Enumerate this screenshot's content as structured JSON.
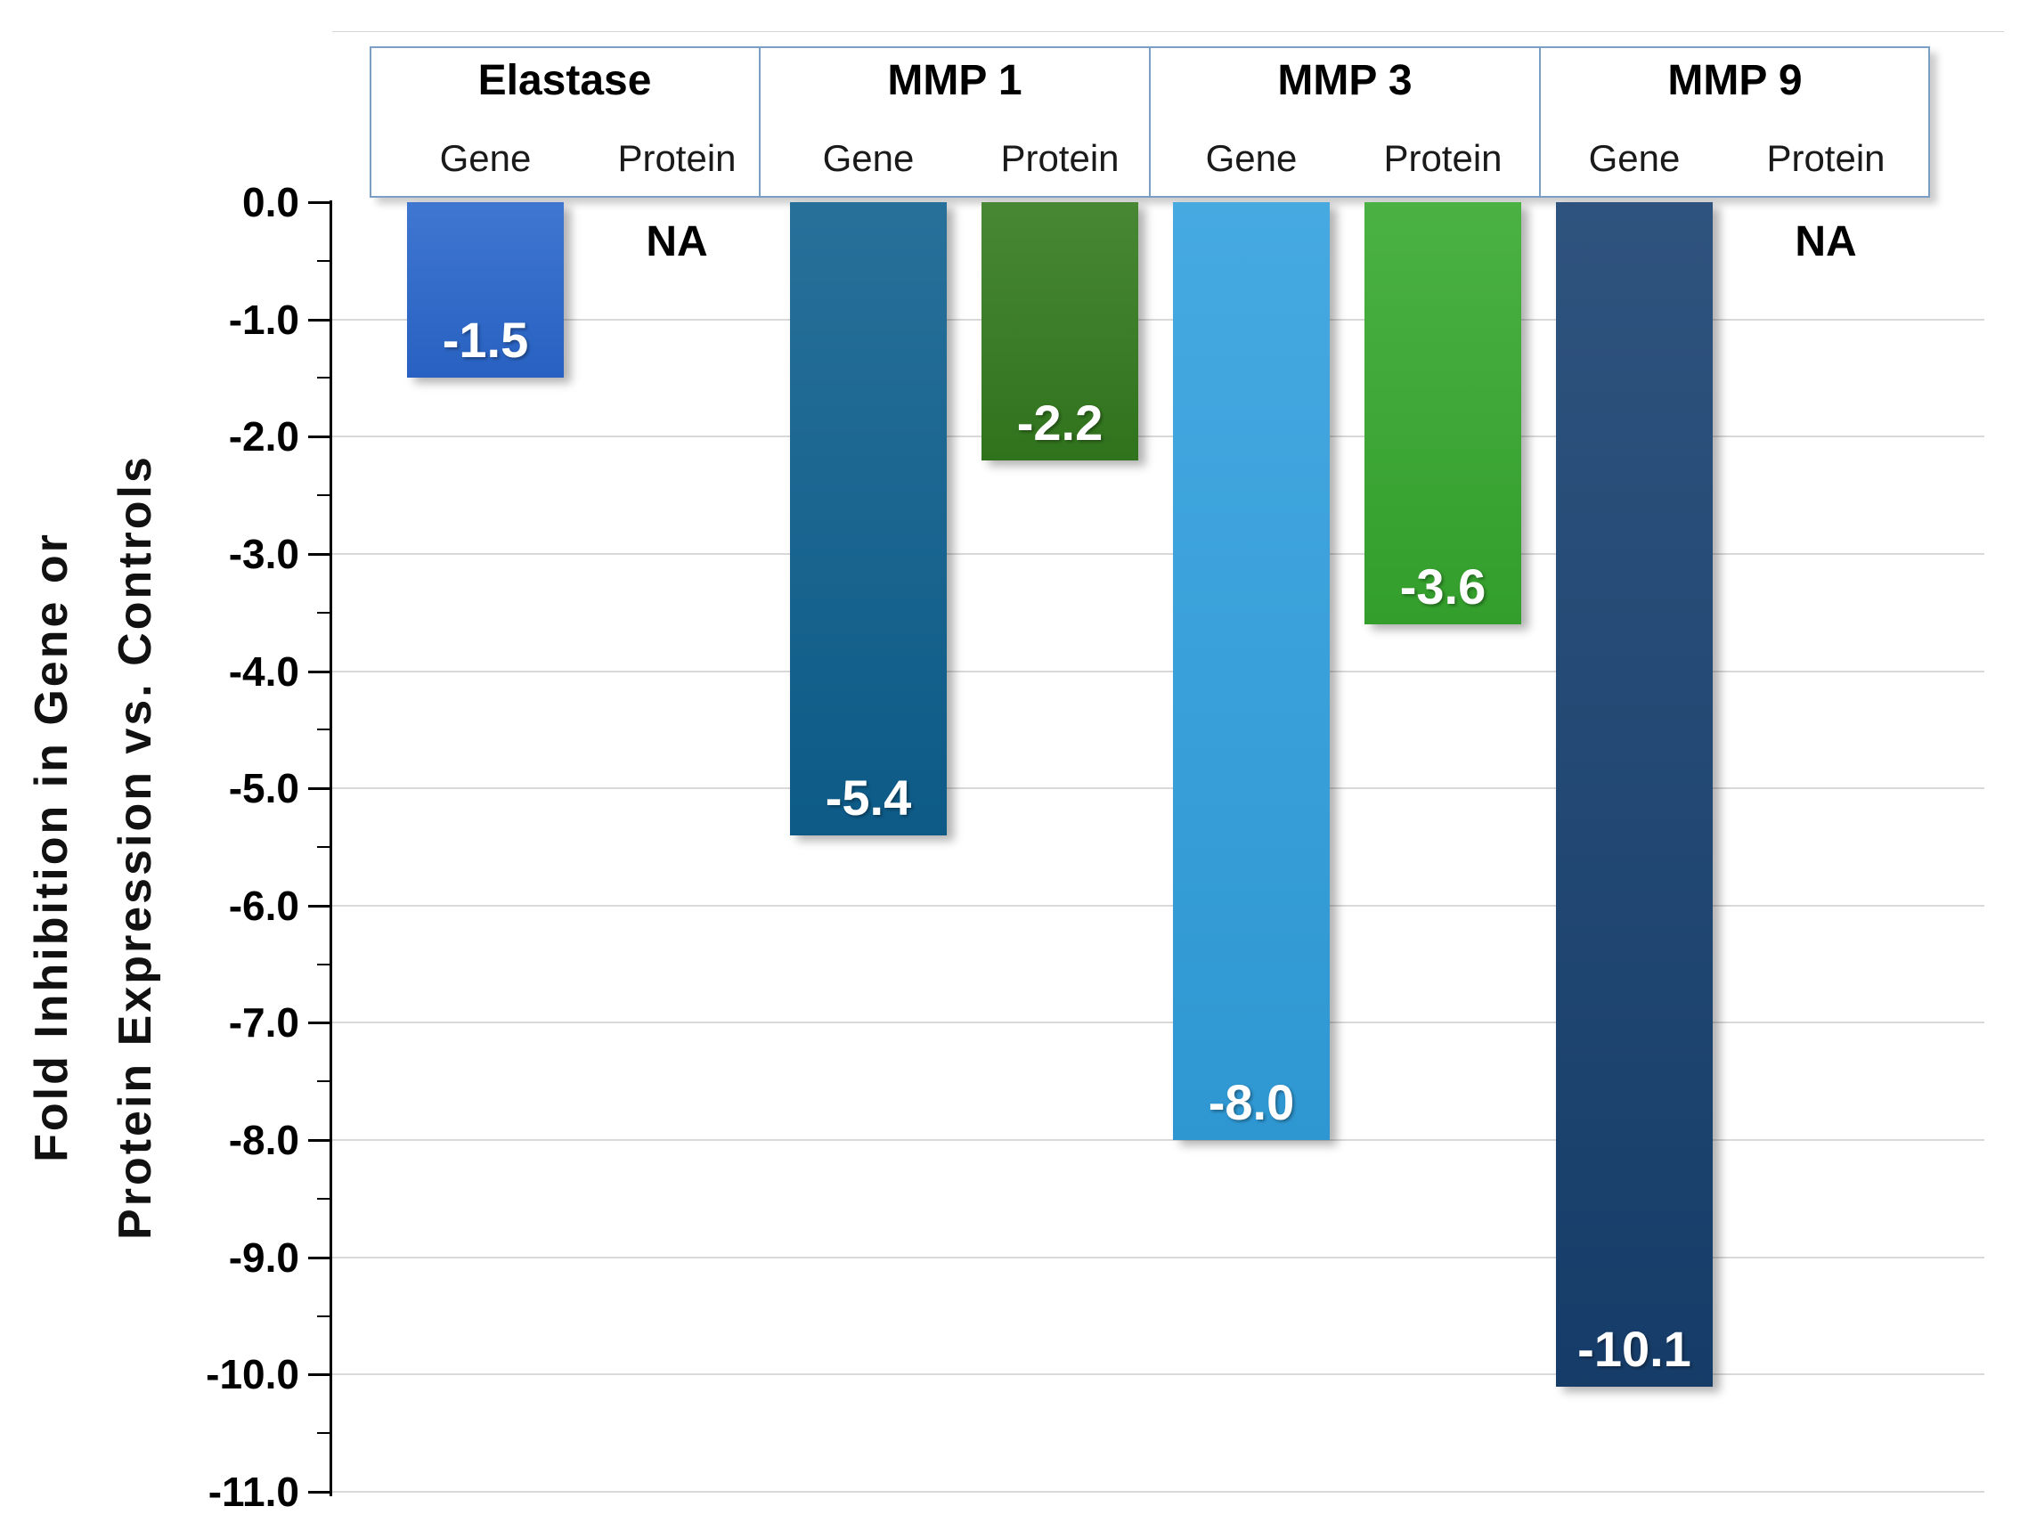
{
  "chart_data": {
    "type": "bar",
    "categories": [
      "Elastase",
      "MMP 1",
      "MMP 3",
      "MMP 9"
    ],
    "sub_columns": [
      "Gene",
      "Protein"
    ],
    "series": [
      {
        "name": "Gene",
        "values": [
          -1.5,
          -5.4,
          -8.0,
          -10.1
        ],
        "labels": [
          "-1.5",
          "-5.4",
          "-8.0",
          "-10.1"
        ],
        "colors": [
          "#2a67cd",
          "#0e608f",
          "#31a0de",
          "#17406f"
        ]
      },
      {
        "name": "Protein",
        "values": [
          null,
          -2.2,
          -3.6,
          null
        ],
        "labels": [
          "NA",
          "-2.2",
          "-3.6",
          "NA"
        ],
        "colors": [
          null,
          "#337a1e",
          "#36a82e",
          null
        ]
      }
    ],
    "na_label": "NA",
    "title": "",
    "xlabel": "",
    "ylabel": "Fold Inhibition in Gene or Protein Expression vs. Controls",
    "ylim": [
      -11.0,
      0.0
    ],
    "ytick_step": 1.0,
    "grid": true,
    "legend_position": "none",
    "value_label_position": "inside-end"
  },
  "y_axis": {
    "title_lines": [
      "Fold Inhibition in Gene or",
      "Protein Expression vs. Controls"
    ],
    "tick_labels": [
      "0.0",
      "-1.0",
      "-2.0",
      "-3.0",
      "-4.0",
      "-5.0",
      "-6.0",
      "-7.0",
      "-8.0",
      "-9.0",
      "-10.0",
      "-11.0"
    ]
  },
  "header": {
    "groups": [
      {
        "title": "Elastase",
        "sub_labels": [
          "Gene",
          "Protein"
        ]
      },
      {
        "title": "MMP 1",
        "sub_labels": [
          "Gene",
          "Protein"
        ]
      },
      {
        "title": "MMP 3",
        "sub_labels": [
          "Gene",
          "Protein"
        ]
      },
      {
        "title": "MMP 9",
        "sub_labels": [
          "Gene",
          "Protein"
        ]
      }
    ],
    "border_color": "#7b9fc4"
  },
  "colors": {
    "gridline": "#d9d9d9",
    "axis": "#000000",
    "bar_elastase_gene": "#2a67cd",
    "bar_mmp1_gene": "#0e608f",
    "bar_mmp1_protein": "#337a1e",
    "bar_mmp3_gene": "#31a0de",
    "bar_mmp3_protein": "#36a82e",
    "bar_mmp9_gene": "#17406f"
  }
}
